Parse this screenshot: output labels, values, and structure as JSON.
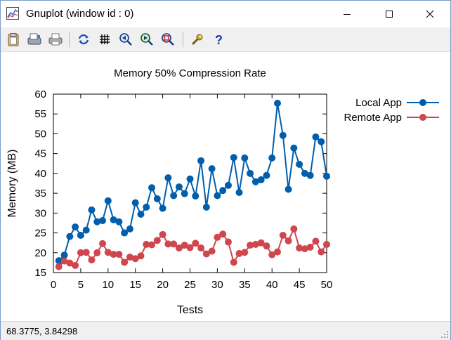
{
  "window": {
    "title": "Gnuplot (window id : 0)",
    "icon": "gnuplot-app-icon",
    "controls": [
      "minimize-icon",
      "maximize-icon",
      "close-icon"
    ]
  },
  "toolbar": {
    "items": [
      "clipboard-icon",
      "print-save-icon",
      "printer-icon",
      "replot-icon",
      "grid-icon",
      "zoom-previous-icon",
      "zoom-next-icon",
      "unzoom-icon",
      "options-wrench-icon",
      "help-icon"
    ]
  },
  "colors": {
    "local": "#005eac",
    "remote": "#d0464d",
    "title_bar_border": "#7a9cc6"
  },
  "status": {
    "coords": "68.3775,  3.84298"
  },
  "chart_data": {
    "type": "line",
    "title": "Memory 50% Compression Rate",
    "xlabel": "Tests",
    "ylabel": "Memory (MB)",
    "xlim": [
      0,
      50
    ],
    "ylim": [
      15,
      60
    ],
    "xticks": [
      0,
      5,
      10,
      15,
      20,
      25,
      30,
      35,
      40,
      45,
      50
    ],
    "yticks": [
      15,
      20,
      25,
      30,
      35,
      40,
      45,
      50,
      55,
      60
    ],
    "grid": false,
    "legend": "top-right outside",
    "series": [
      {
        "name": "Local App",
        "color": "#005eac",
        "x": [
          1,
          2,
          3,
          4,
          5,
          6,
          7,
          8,
          9,
          10,
          11,
          12,
          13,
          14,
          15,
          16,
          17,
          18,
          19,
          20,
          21,
          22,
          23,
          24,
          25,
          26,
          27,
          28,
          29,
          30,
          31,
          32,
          33,
          34,
          35,
          36,
          37,
          38,
          39,
          40,
          41,
          42,
          43,
          44,
          45,
          46,
          47,
          48,
          49,
          50
        ],
        "values": [
          18.0,
          19.4,
          24.1,
          26.5,
          24.4,
          25.7,
          30.8,
          27.8,
          28.1,
          33.1,
          28.3,
          27.8,
          25.0,
          26.0,
          32.6,
          29.7,
          31.5,
          36.4,
          33.6,
          31.2,
          38.9,
          34.4,
          36.6,
          34.9,
          38.6,
          34.3,
          43.2,
          31.5,
          41.2,
          34.4,
          35.7,
          37.0,
          44.0,
          35.2,
          43.9,
          40.0,
          37.9,
          38.4,
          39.5,
          43.9,
          57.7,
          49.6,
          36.0,
          46.4,
          42.3,
          40.0,
          39.5,
          49.2,
          48.0,
          39.3
        ]
      },
      {
        "name": "Remote App",
        "color": "#d0464d",
        "x": [
          1,
          2,
          3,
          4,
          5,
          6,
          7,
          8,
          9,
          10,
          11,
          12,
          13,
          14,
          15,
          16,
          17,
          18,
          19,
          20,
          21,
          22,
          23,
          24,
          25,
          26,
          27,
          28,
          29,
          30,
          31,
          32,
          33,
          34,
          35,
          36,
          37,
          38,
          39,
          40,
          41,
          42,
          43,
          44,
          45,
          46,
          47,
          48,
          49,
          50
        ],
        "values": [
          16.5,
          17.9,
          17.4,
          16.8,
          20.0,
          20.1,
          18.2,
          20.0,
          22.3,
          20.1,
          19.6,
          19.6,
          17.6,
          18.9,
          18.5,
          19.2,
          22.1,
          22.0,
          23.1,
          24.6,
          22.2,
          22.2,
          21.2,
          21.9,
          21.3,
          22.4,
          21.2,
          19.7,
          20.4,
          23.9,
          24.7,
          22.7,
          17.6,
          19.8,
          20.1,
          21.9,
          22.1,
          22.5,
          21.7,
          19.5,
          20.2,
          24.4,
          23.0,
          26.0,
          21.2,
          21.0,
          21.4,
          22.9,
          20.2,
          22.1
        ]
      }
    ]
  }
}
